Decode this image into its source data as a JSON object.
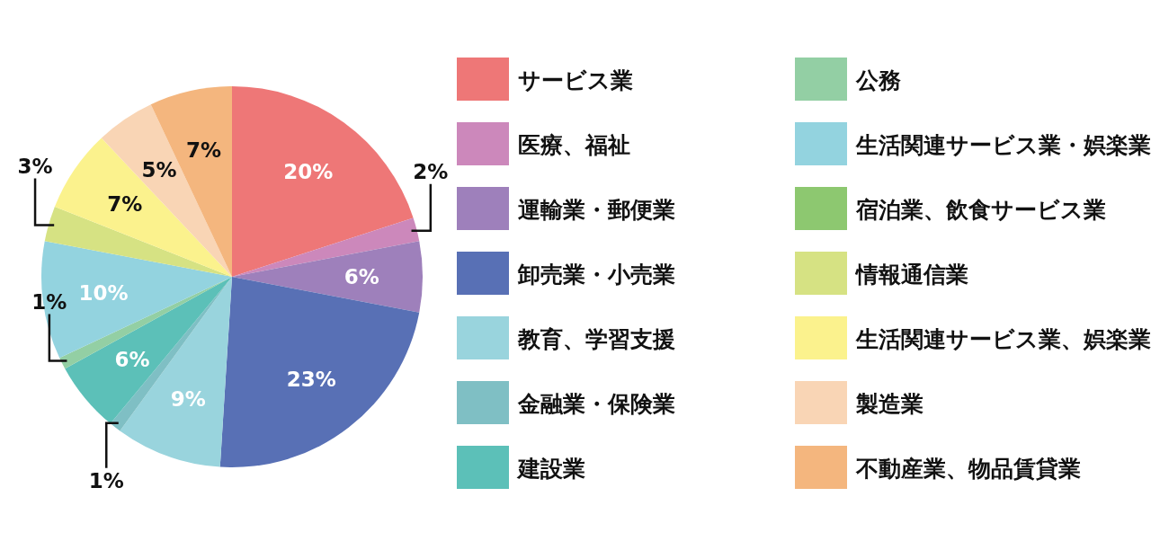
{
  "chart_data": {
    "type": "pie",
    "value_labels": [
      "20%",
      "2%",
      "6%",
      "23%",
      "9%",
      "1%",
      "6%",
      "1%",
      "10%",
      null,
      "3%",
      "7%",
      "5%",
      "7%"
    ],
    "legend": "right",
    "categories": [
      "サービス業",
      "医療、福祉",
      "運輸業・郵便業",
      "卸売業・小売業",
      "教育、学習支援",
      "金融業・保険業",
      "建設業",
      "公務",
      "生活関連サービス業・娯楽業",
      "宿泊業、飲食サービス業",
      "情報通信業",
      "生活関連サービス業、娯楽業",
      "製造業",
      "不動産業、物品賃貸業"
    ],
    "values": [
      20,
      2,
      6,
      23,
      9,
      1,
      6,
      1,
      10,
      0,
      3,
      7,
      5,
      7
    ],
    "colors": [
      "#ee7777",
      "#cc88bb",
      "#9e80bb",
      "#5870b5",
      "#99d4dd",
      "#7fbfc4",
      "#5cc0b8",
      "#93cfa4",
      "#93d3df",
      "#8dc870",
      "#d6e283",
      "#fbf28d",
      "#f9d5b5",
      "#f4b67e"
    ]
  }
}
